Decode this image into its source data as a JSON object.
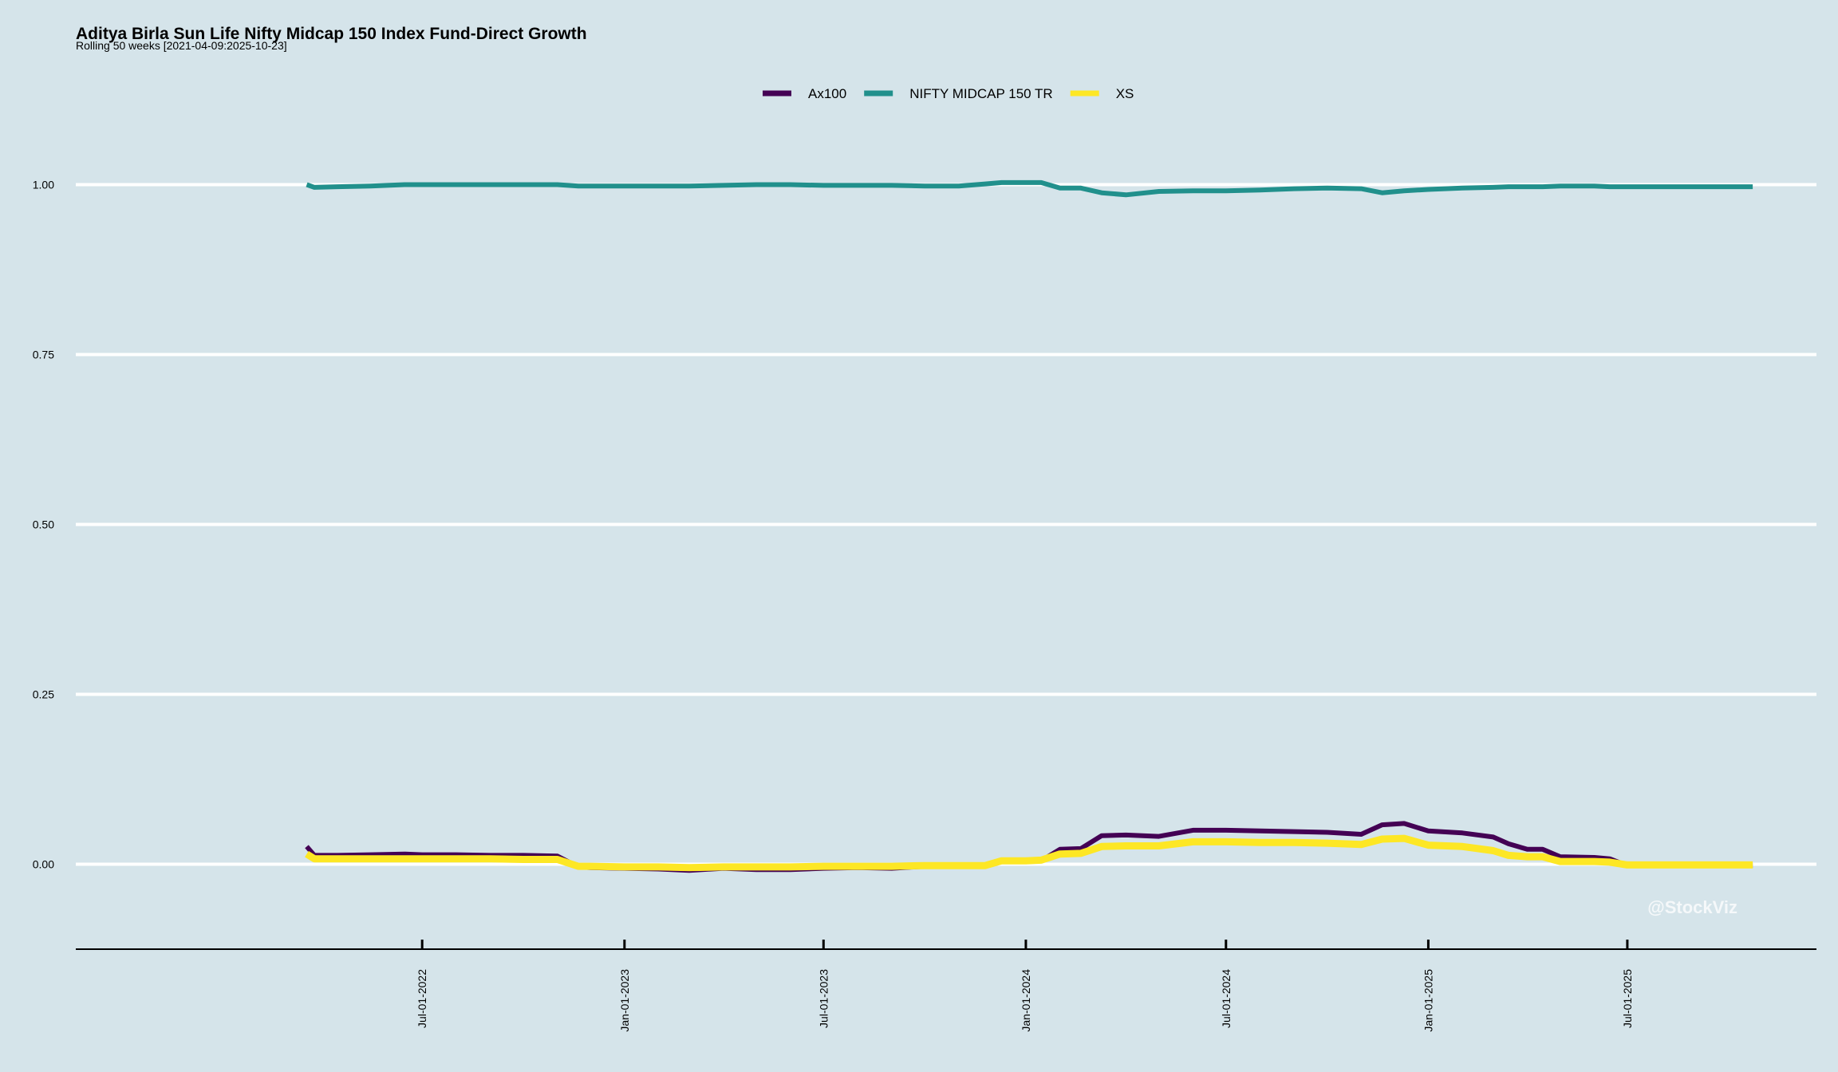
{
  "chart_data": {
    "type": "line",
    "title": "Aditya Birla Sun Life Nifty Midcap 150 Index Fund-Direct Growth",
    "subtitle": "Rolling 50 weeks [2021-04-09:2025-10-23]",
    "xlabel": "",
    "ylabel": "",
    "ylim": [
      -0.125,
      1.125
    ],
    "yticks": [
      0.0,
      0.25,
      0.5,
      0.75,
      1.0
    ],
    "ytick_labels": [
      "0.00",
      "0.25",
      "0.50",
      "0.75",
      "1.00"
    ],
    "xlim": [
      "2021-08-20",
      "2025-12-20"
    ],
    "xticks": [
      "2022-07-01",
      "2023-01-01",
      "2023-07-01",
      "2024-01-01",
      "2024-07-01",
      "2025-01-01",
      "2025-07-01"
    ],
    "xtick_labels": [
      "Jul-01-2022",
      "Jan-01-2023",
      "Jul-01-2023",
      "Jan-01-2024",
      "Jul-01-2024",
      "Jan-01-2025",
      "Jul-01-2025"
    ],
    "grid": "horizontal",
    "legend": "top-center",
    "x": [
      "2022-03-18",
      "2022-03-25",
      "2022-04-15",
      "2022-05-15",
      "2022-06-15",
      "2022-07-01",
      "2022-08-01",
      "2022-09-01",
      "2022-10-01",
      "2022-11-01",
      "2022-11-20",
      "2022-12-01",
      "2023-01-01",
      "2023-02-01",
      "2023-03-01",
      "2023-04-01",
      "2023-05-01",
      "2023-06-01",
      "2023-07-01",
      "2023-08-01",
      "2023-09-01",
      "2023-10-01",
      "2023-11-01",
      "2023-11-25",
      "2023-12-10",
      "2024-01-01",
      "2024-01-15",
      "2024-02-01",
      "2024-02-20",
      "2024-03-10",
      "2024-04-01",
      "2024-05-01",
      "2024-06-01",
      "2024-07-01",
      "2024-08-01",
      "2024-09-01",
      "2024-10-01",
      "2024-11-01",
      "2024-11-20",
      "2024-12-10",
      "2025-01-01",
      "2025-02-01",
      "2025-03-01",
      "2025-03-15",
      "2025-04-01",
      "2025-04-15",
      "2025-05-01",
      "2025-06-01",
      "2025-06-15",
      "2025-07-01",
      "2025-08-01",
      "2025-09-01",
      "2025-10-01",
      "2025-10-23"
    ],
    "series": [
      {
        "name": "Ax100",
        "color": "#440154",
        "values": [
          0.026,
          0.013,
          0.013,
          0.014,
          0.015,
          0.014,
          0.014,
          0.013,
          0.013,
          0.012,
          -0.004,
          -0.005,
          -0.006,
          -0.007,
          -0.009,
          -0.006,
          -0.008,
          -0.008,
          -0.006,
          -0.005,
          -0.006,
          -0.003,
          -0.003,
          -0.003,
          0.004,
          0.005,
          0.005,
          0.022,
          0.023,
          0.042,
          0.043,
          0.041,
          0.05,
          0.05,
          0.049,
          0.048,
          0.047,
          0.044,
          0.058,
          0.06,
          0.049,
          0.046,
          0.04,
          0.03,
          0.022,
          0.022,
          0.011,
          0.01,
          0.008,
          -0.002,
          -0.001,
          -0.001,
          -0.002,
          -0.002
        ]
      },
      {
        "name": "NIFTY MIDCAP 150 TR",
        "color": "#21908c",
        "values": [
          1.0,
          0.996,
          0.997,
          0.998,
          1.0,
          1.0,
          1.0,
          1.0,
          1.0,
          1.0,
          0.998,
          0.998,
          0.998,
          0.998,
          0.998,
          0.999,
          1.0,
          1.0,
          0.999,
          0.999,
          0.999,
          0.998,
          0.998,
          1.001,
          1.003,
          1.003,
          1.003,
          0.995,
          0.995,
          0.988,
          0.985,
          0.99,
          0.991,
          0.991,
          0.992,
          0.994,
          0.995,
          0.994,
          0.988,
          0.991,
          0.993,
          0.995,
          0.996,
          0.997,
          0.997,
          0.997,
          0.998,
          0.998,
          0.997,
          0.997,
          0.997,
          0.997,
          0.997,
          0.997
        ]
      },
      {
        "name": "XS",
        "color": "#fde725",
        "values": [
          0.015,
          0.008,
          0.008,
          0.008,
          0.008,
          0.008,
          0.008,
          0.008,
          0.007,
          0.007,
          -0.003,
          -0.003,
          -0.004,
          -0.004,
          -0.005,
          -0.004,
          -0.004,
          -0.004,
          -0.003,
          -0.003,
          -0.003,
          -0.002,
          -0.002,
          -0.002,
          0.005,
          0.005,
          0.006,
          0.015,
          0.016,
          0.026,
          0.027,
          0.027,
          0.033,
          0.033,
          0.032,
          0.032,
          0.031,
          0.029,
          0.037,
          0.038,
          0.028,
          0.026,
          0.02,
          0.013,
          0.011,
          0.011,
          0.004,
          0.004,
          0.003,
          -0.001,
          -0.001,
          -0.001,
          -0.001,
          -0.001
        ]
      }
    ],
    "watermark": "@StockViz",
    "colors": {
      "background": "#d5e4ea",
      "grid": "#ffffff",
      "axis": "#000000"
    }
  }
}
